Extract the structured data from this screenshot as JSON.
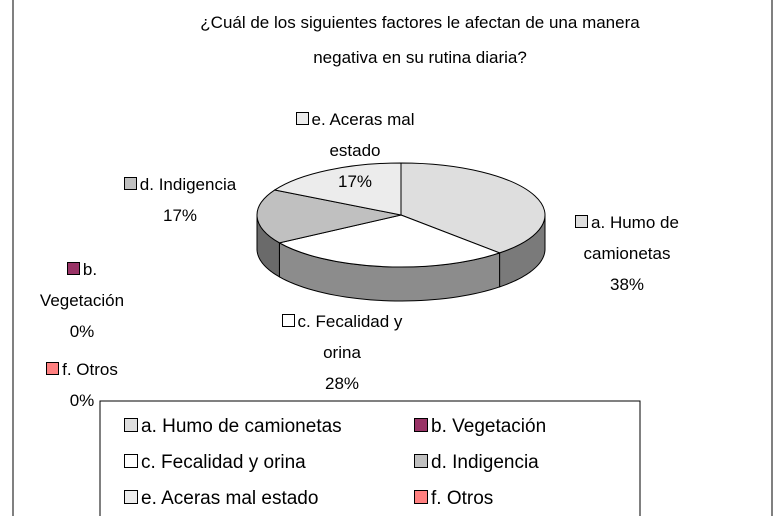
{
  "chart_data": {
    "type": "pie",
    "title": "¿Cuál de los siguientes factores le afectan de una manera negativa en su rutina diaria?",
    "categories": [
      "a. Humo de camionetas",
      "b. Vegetación",
      "c. Fecalidad y orina",
      "d. Indigencia",
      "e. Aceras mal estado",
      "f.  Otros"
    ],
    "values": [
      38,
      0,
      28,
      17,
      17,
      0
    ],
    "value_labels": [
      "38%",
      "0%",
      "28%",
      "17%",
      "17%",
      "0%"
    ],
    "colors": [
      "#dedede",
      "#993366",
      "#ffffff",
      "#c0c0c0",
      "#ececec",
      "#ff8080"
    ]
  }
}
